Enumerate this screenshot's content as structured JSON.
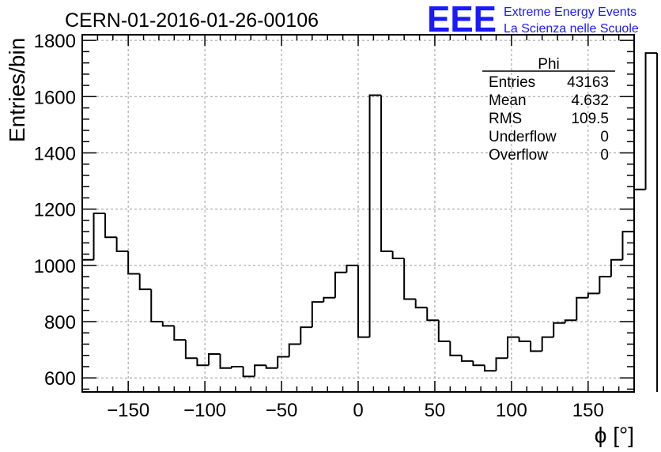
{
  "chart_data": {
    "type": "bar",
    "title": "CERN-01-2016-01-26-00106",
    "xlabel": "ϕ [°]",
    "ylabel": "Entries/bin",
    "xlim": [
      -180,
      180
    ],
    "ylim": [
      550,
      1820
    ],
    "grid": true,
    "x_ticks": [
      -150,
      -100,
      -50,
      0,
      50,
      100,
      150
    ],
    "x_tick_labels": [
      "−150",
      "−100",
      "−50",
      "0",
      "50",
      "100",
      "150"
    ],
    "y_ticks": [
      600,
      800,
      1000,
      1200,
      1400,
      1600,
      1800
    ],
    "y_tick_labels": [
      "600",
      "800",
      "1000",
      "1200",
      "1400",
      "1600",
      "1800"
    ],
    "bin_edges_start": -180,
    "bin_width": 7.5,
    "values": [
      1020,
      1185,
      1100,
      1050,
      970,
      915,
      800,
      785,
      735,
      670,
      645,
      685,
      635,
      640,
      605,
      645,
      635,
      675,
      720,
      780,
      870,
      885,
      975,
      1000,
      745,
      1605,
      1050,
      1025,
      880,
      850,
      805,
      730,
      680,
      660,
      645,
      625,
      670,
      745,
      730,
      695,
      745,
      795,
      805,
      885,
      900,
      960,
      1020,
      1120,
      1270,
      1755
    ],
    "stats": {
      "title": "Phi",
      "rows": [
        {
          "label": "Entries",
          "value": "43163"
        },
        {
          "label": "Mean",
          "value": "4.632"
        },
        {
          "label": "RMS",
          "value": "109.5"
        },
        {
          "label": "Underflow",
          "value": "0"
        },
        {
          "label": "Overflow",
          "value": "0"
        }
      ]
    }
  },
  "logo": {
    "big": "EEE",
    "line1": "Extreme Energy Events",
    "line2": "La Scienza nelle Scuole"
  },
  "colors": {
    "histogram": "#000000",
    "grid": "#9a9a9a",
    "logo": "#1a1aff"
  }
}
